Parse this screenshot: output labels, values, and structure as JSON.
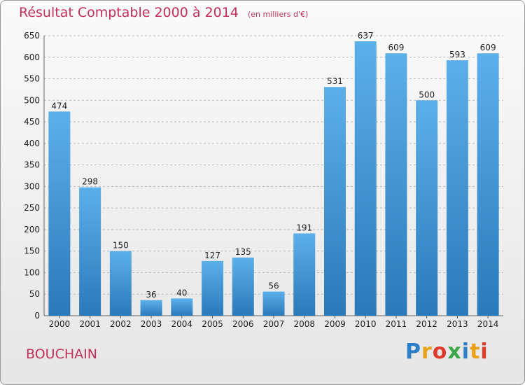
{
  "title": "Résultat Comptable 2000 à 2014",
  "subtitle": "(en milliers d'€)",
  "commune": "BOUCHAIN",
  "logo": {
    "text": "Proxiti",
    "letters": [
      "P",
      "r",
      "o",
      "x",
      "i",
      "t",
      "i"
    ],
    "colors": [
      "#2a7fc6",
      "#e8a21a",
      "#e03b2a",
      "#3aa847",
      "#2a7fc6",
      "#e8a21a",
      "#e03b2a"
    ]
  },
  "colors": {
    "title": "#c4305a",
    "bar_top": "#5cb0ea",
    "bar_bottom": "#2a79b9",
    "grid": "#bcbcbc",
    "axis_text": "#222222"
  },
  "chart_data": {
    "type": "bar",
    "categories": [
      "2000",
      "2001",
      "2002",
      "2003",
      "2004",
      "2005",
      "2006",
      "2007",
      "2008",
      "2009",
      "2010",
      "2011",
      "2012",
      "2013",
      "2014"
    ],
    "values": [
      474,
      298,
      150,
      36,
      40,
      127,
      135,
      56,
      191,
      531,
      637,
      609,
      500,
      593,
      609
    ],
    "ylim": [
      0,
      650
    ],
    "yticks": [
      0,
      50,
      100,
      150,
      200,
      250,
      300,
      350,
      400,
      450,
      500,
      550,
      600,
      650
    ],
    "grid": true
  }
}
